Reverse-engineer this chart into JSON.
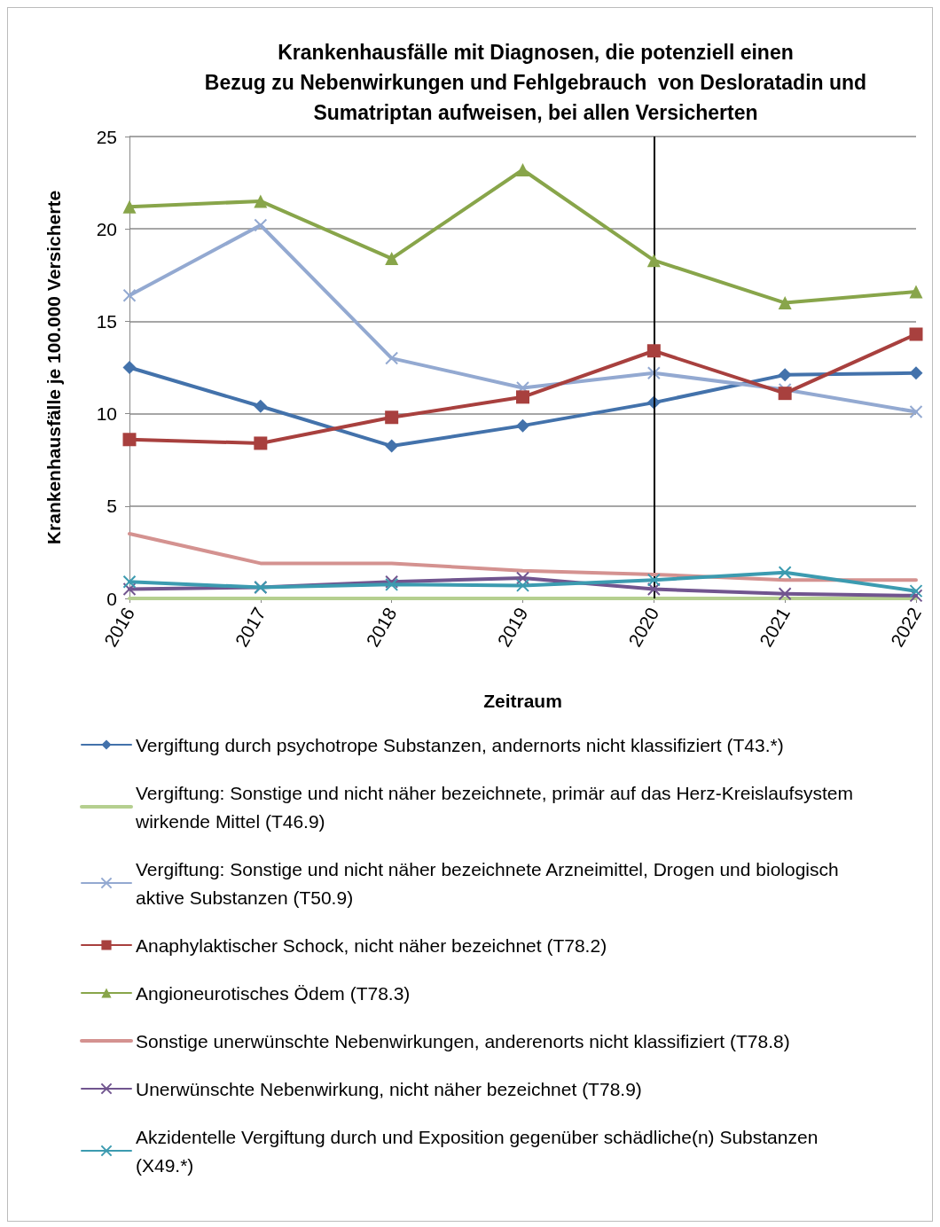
{
  "chart_data": {
    "type": "line",
    "title": "Krankenhausfälle mit Diagnosen, die potenziell einen\nBezug zu Nebenwirkungen und Fehlgebrauch  von Desloratadin und\nSumatriptan aufweisen, bei allen Versicherten",
    "xlabel": "Zeitraum",
    "ylabel": "Krankenhausfälle je 100.000 Versicherte",
    "categories": [
      "2016",
      "2017",
      "2018",
      "2019",
      "2020",
      "2021",
      "2022"
    ],
    "ylim": [
      0,
      25
    ],
    "yticks": [
      0,
      5,
      10,
      15,
      20,
      25
    ],
    "grid": "y",
    "legend": "bottom",
    "line_style": "solid",
    "ref_lines": [
      {
        "axis": "x",
        "value": "2020",
        "color": "#000000"
      }
    ],
    "series": [
      {
        "name": "Vergiftung durch psychotrope Substanzen, andernorts nicht klassifiziert (T43.*)",
        "color": "#4372ab",
        "marker": "diamond",
        "values": [
          12.5,
          10.4,
          8.25,
          9.35,
          10.6,
          12.1,
          12.2
        ]
      },
      {
        "name": "Vergiftung: Sonstige und nicht näher bezeichnete, primär auf das Herz-Kreislaufsystem wirkende Mittel (T46.9)",
        "color": "#b5cf8f",
        "marker": "none",
        "values": [
          0,
          0,
          0,
          0,
          0,
          0,
          0
        ]
      },
      {
        "name": "Vergiftung: Sonstige und nicht näher bezeichnete Arzneimittel, Drogen und biologisch aktive Substanzen (T50.9)",
        "color": "#93a9d1",
        "marker": "cross",
        "values": [
          16.4,
          20.2,
          13.0,
          11.4,
          12.2,
          11.3,
          10.1
        ]
      },
      {
        "name": "Anaphylaktischer Schock, nicht näher bezeichnet (T78.2)",
        "color": "#a8403e",
        "marker": "square",
        "values": [
          8.6,
          8.4,
          9.8,
          10.9,
          13.4,
          11.1,
          14.3
        ]
      },
      {
        "name": "Angioneurotisches Ödem (T78.3)",
        "color": "#88a54a",
        "marker": "triangle",
        "values": [
          21.2,
          21.5,
          18.4,
          23.2,
          18.3,
          16.0,
          16.6
        ]
      },
      {
        "name": "Sonstige unerwünschte Nebenwirkungen, anderenorts nicht klassifiziert (T78.8)",
        "color": "#d49290",
        "marker": "none",
        "values": [
          3.5,
          1.9,
          1.9,
          1.5,
          1.3,
          1.0,
          1.0
        ]
      },
      {
        "name": "Unerwünschte Nebenwirkung, nicht näher bezeichnet (T78.9)",
        "color": "#71558f",
        "marker": "cross",
        "values": [
          0.5,
          0.6,
          0.9,
          1.1,
          0.5,
          0.25,
          0.15
        ]
      },
      {
        "name": "Akzidentelle Vergiftung durch und Exposition gegenüber schädliche(n) Substanzen (X49.*)",
        "color": "#3c9bb0",
        "marker": "cross",
        "values": [
          0.9,
          0.6,
          0.75,
          0.7,
          1.0,
          1.4,
          0.4
        ]
      }
    ]
  }
}
